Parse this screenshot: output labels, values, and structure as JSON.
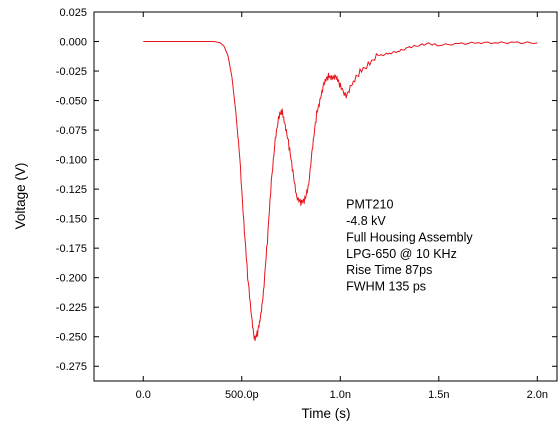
{
  "chart_data": {
    "type": "line",
    "xlabel": "Time (s)",
    "ylabel": "Voltage (V)",
    "xlim": [
      -2.5e-10,
      2.1e-09
    ],
    "ylim": [
      -0.2875,
      0.025
    ],
    "x_ticks": [
      {
        "value": 0,
        "label": "0.0"
      },
      {
        "value": 5e-10,
        "label": "500.0p"
      },
      {
        "value": 1e-09,
        "label": "1.0n"
      },
      {
        "value": 1.5e-09,
        "label": "1.5n"
      },
      {
        "value": 2e-09,
        "label": "2.0n"
      }
    ],
    "y_ticks": [
      {
        "value": 0.025,
        "label": "0.025"
      },
      {
        "value": 0.0,
        "label": "0.000"
      },
      {
        "value": -0.025,
        "label": "-0.025"
      },
      {
        "value": -0.05,
        "label": "-0.050"
      },
      {
        "value": -0.075,
        "label": "-0.075"
      },
      {
        "value": -0.1,
        "label": "-0.100"
      },
      {
        "value": -0.125,
        "label": "-0.125"
      },
      {
        "value": -0.15,
        "label": "-0.150"
      },
      {
        "value": -0.175,
        "label": "-0.175"
      },
      {
        "value": -0.2,
        "label": "-0.200"
      },
      {
        "value": -0.225,
        "label": "-0.225"
      },
      {
        "value": -0.25,
        "label": "-0.250"
      },
      {
        "value": -0.275,
        "label": "-0.275"
      }
    ],
    "annotations": [
      "PMT210",
      "-4.8 kV",
      "Full Housing Assembly",
      "LPG-650 @ 10 KHz",
      "Rise Time 87ps",
      "FWHM  135 ps"
    ],
    "grid": false,
    "line_color": "#e8141c",
    "series": [
      {
        "x": [
          0,
          1e-10,
          2e-10,
          3e-10,
          3.6e-10,
          3.9e-10,
          4.1e-10,
          4.3e-10,
          4.5e-10,
          4.7e-10,
          4.9e-10,
          5.1e-10,
          5.3e-10,
          5.5e-10,
          5.65e-10,
          5.8e-10,
          5.95e-10,
          6.1e-10,
          6.3e-10,
          6.5e-10,
          6.7e-10,
          6.9e-10,
          7.05e-10,
          7.2e-10,
          7.4e-10,
          7.6e-10,
          7.8e-10,
          8e-10,
          8.2e-10,
          8.4e-10,
          8.6e-10,
          8.8e-10,
          9e-10,
          9.2e-10,
          9.4e-10,
          9.6e-10,
          9.8e-10,
          1e-09,
          1.03e-09,
          1.06e-09,
          1.1e-09,
          1.15e-09,
          1.2e-09,
          1.25e-09,
          1.3e-09,
          1.35e-09,
          1.4e-09,
          1.45e-09,
          1.5e-09,
          1.6e-09,
          1.7e-09,
          1.8e-09,
          1.9e-09,
          2e-09
        ],
        "y": [
          0.0,
          0.0,
          0.0,
          0.0,
          0.0,
          -0.001,
          -0.004,
          -0.012,
          -0.03,
          -0.06,
          -0.1,
          -0.15,
          -0.2,
          -0.235,
          -0.25,
          -0.248,
          -0.235,
          -0.21,
          -0.17,
          -0.12,
          -0.08,
          -0.064,
          -0.06,
          -0.068,
          -0.09,
          -0.112,
          -0.13,
          -0.138,
          -0.135,
          -0.118,
          -0.09,
          -0.062,
          -0.045,
          -0.036,
          -0.03,
          -0.028,
          -0.032,
          -0.038,
          -0.044,
          -0.038,
          -0.026,
          -0.016,
          -0.012,
          -0.01,
          -0.008,
          -0.005,
          -0.003,
          -0.002,
          -0.003,
          -0.002,
          -0.001,
          -0.001,
          -0.001,
          -0.001
        ]
      }
    ]
  }
}
